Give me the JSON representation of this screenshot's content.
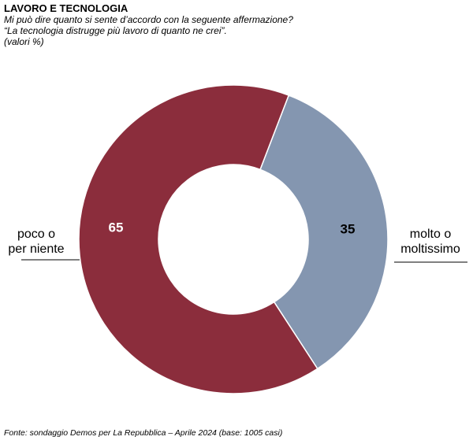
{
  "header": {
    "title": "LAVORO E TECNOLOGIA",
    "question": "Mi può dire quanto si sente d’accordo con la seguente affermazione?",
    "statement": "“La tecnologia distrugge più lavoro di quanto ne crei”.",
    "units": "(valori %)"
  },
  "chart_data": {
    "type": "pie",
    "donut": true,
    "title": "LAVORO E TECNOLOGIA",
    "slices": [
      {
        "label_lines": [
          "molto o",
          "moltissimo"
        ],
        "value": 35,
        "color": "#8496b0",
        "value_text_color": "#000000"
      },
      {
        "label_lines": [
          "poco o",
          "per niente"
        ],
        "value": 65,
        "color": "#8b2d3c",
        "value_text_color": "#ffffff"
      }
    ],
    "legend": "none"
  },
  "footer": {
    "source": "Fonte: sondaggio Demos per La Repubblica – Aprile 2024 (base: 1005 casi)"
  }
}
